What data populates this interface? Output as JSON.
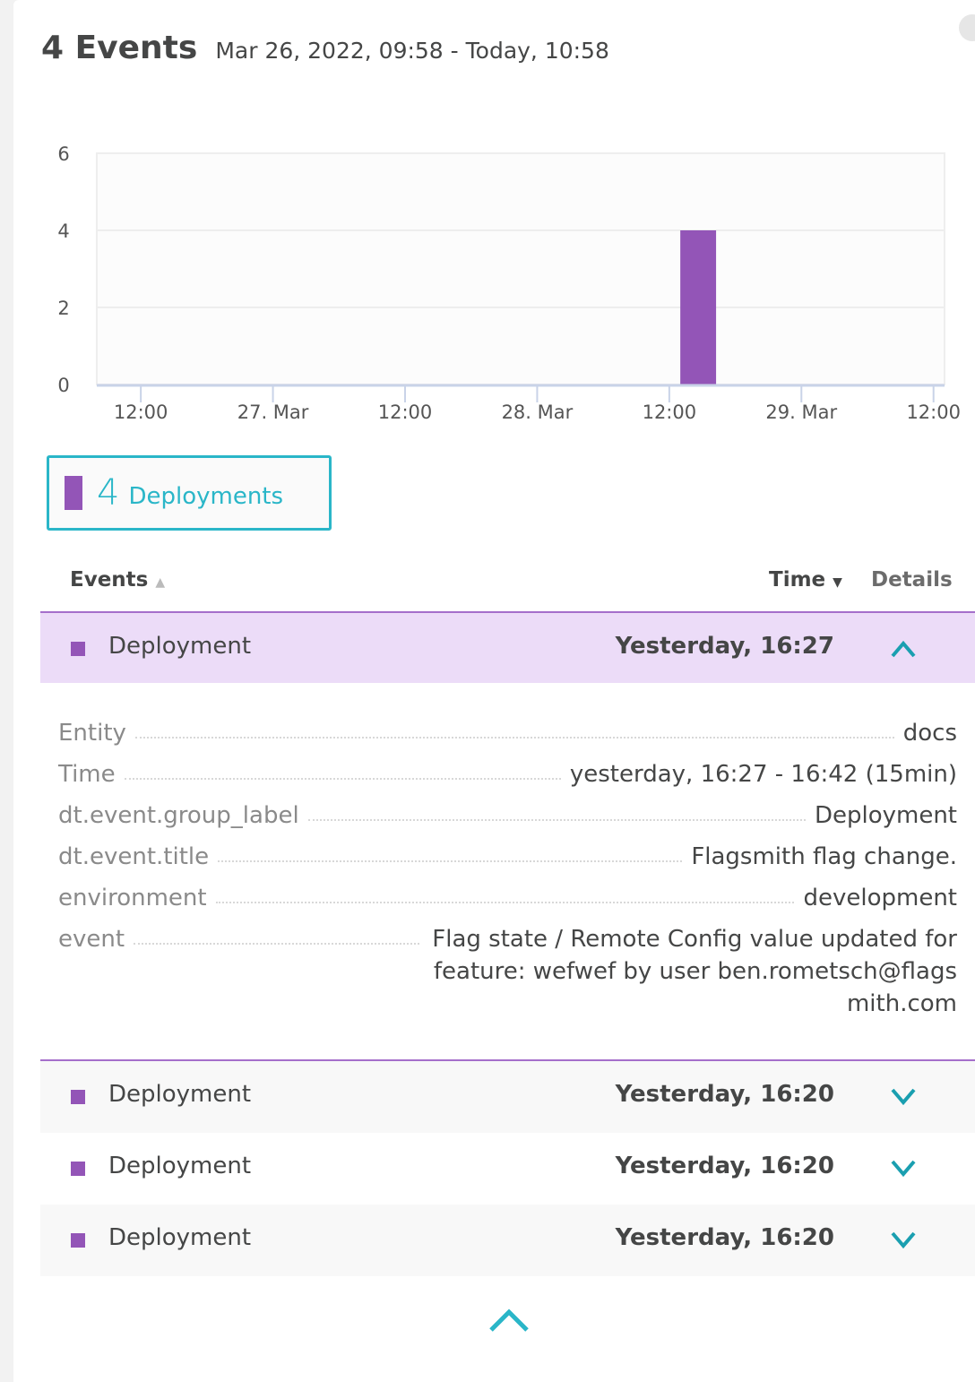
{
  "header": {
    "count": "4 Events",
    "range": "Mar 26, 2022, 09:58 - Today, 10:58"
  },
  "chart_data": {
    "type": "bar",
    "yticks": [
      "0",
      "2",
      "4",
      "6"
    ],
    "ylim": [
      0,
      6
    ],
    "xlim": [
      "2022-03-26T08:00",
      "2022-03-29T13:00"
    ],
    "xticks": [
      {
        "t": "2022-03-26T12:00",
        "label": "12:00"
      },
      {
        "t": "2022-03-27T00:00",
        "label": "27. Mar"
      },
      {
        "t": "2022-03-27T12:00",
        "label": "12:00"
      },
      {
        "t": "2022-03-28T00:00",
        "label": "28. Mar"
      },
      {
        "t": "2022-03-28T12:00",
        "label": "12:00"
      },
      {
        "t": "2022-03-29T00:00",
        "label": "29. Mar"
      },
      {
        "t": "2022-03-29T12:00",
        "label": "12:00"
      }
    ],
    "bars": [
      {
        "start": "2022-03-28T13:00",
        "end": "2022-03-28T16:15",
        "value": 4,
        "series": "Deployments"
      }
    ],
    "grid": true,
    "color": "#9355b7"
  },
  "legend": {
    "count": "4",
    "label": "Deployments",
    "color": "#9355b7",
    "accent": "#2ab6c8"
  },
  "table": {
    "headers": {
      "events": "Events",
      "time": "Time",
      "details": "Details"
    },
    "rows": [
      {
        "name": "Deployment",
        "time": "Yesterday, 16:27",
        "expanded": true
      },
      {
        "name": "Deployment",
        "time": "Yesterday, 16:20",
        "expanded": false
      },
      {
        "name": "Deployment",
        "time": "Yesterday, 16:20",
        "expanded": false
      },
      {
        "name": "Deployment",
        "time": "Yesterday, 16:20",
        "expanded": false
      }
    ],
    "details": [
      {
        "key": "Entity",
        "value": "docs"
      },
      {
        "key": "Time",
        "value": "yesterday, 16:27 - 16:42 (15min)"
      },
      {
        "key": "dt.event.group_label",
        "value": "Deployment"
      },
      {
        "key": "dt.event.title",
        "value": "Flagsmith flag change."
      },
      {
        "key": "environment",
        "value": "development"
      },
      {
        "key": "event",
        "value": "Flag state / Remote Config value updated for feature: wefwef by user ben.rometsch@flagsmith.com"
      }
    ]
  }
}
